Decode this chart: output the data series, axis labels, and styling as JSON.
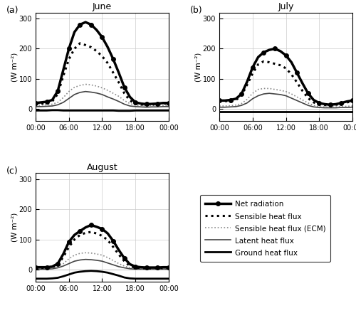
{
  "titles": [
    "June",
    "July",
    "August"
  ],
  "panel_labels": [
    "(a)",
    "(b)",
    "(c)"
  ],
  "time_labels": [
    "00:00",
    "06:00",
    "12:00",
    "18:00",
    "00:00"
  ],
  "time_ticks": [
    0,
    6,
    12,
    18,
    24
  ],
  "ylim": [
    -40,
    320
  ],
  "yticks": [
    0,
    100,
    200,
    300
  ],
  "ylabel": "(W m⁻²)",
  "june": {
    "net_radiation": [
      20,
      22,
      24,
      30,
      60,
      130,
      200,
      255,
      280,
      288,
      280,
      262,
      238,
      205,
      165,
      120,
      72,
      40,
      22,
      18,
      16,
      17,
      18,
      20,
      20
    ],
    "sensible_heat": [
      18,
      18,
      20,
      25,
      50,
      110,
      165,
      200,
      218,
      212,
      205,
      192,
      175,
      152,
      120,
      88,
      52,
      28,
      18,
      15,
      14,
      15,
      16,
      18,
      18
    ],
    "sensible_ecm": [
      12,
      13,
      14,
      16,
      22,
      38,
      58,
      72,
      78,
      82,
      80,
      76,
      70,
      62,
      52,
      42,
      28,
      18,
      13,
      11,
      10,
      11,
      11,
      12,
      12
    ],
    "latent_heat": [
      8,
      8,
      9,
      10,
      14,
      22,
      35,
      48,
      55,
      58,
      56,
      53,
      48,
      40,
      33,
      25,
      16,
      10,
      8,
      7,
      6,
      7,
      7,
      8,
      8
    ],
    "ground_heat": [
      -5,
      -5,
      -5,
      -4,
      -4,
      -5,
      -5,
      -5,
      -5,
      -5,
      -5,
      -5,
      -5,
      -5,
      -5,
      -6,
      -6,
      -6,
      -5,
      -5,
      -5,
      -5,
      -5,
      -5,
      -5
    ]
  },
  "july": {
    "net_radiation": [
      28,
      28,
      30,
      34,
      50,
      90,
      138,
      172,
      188,
      196,
      200,
      192,
      178,
      155,
      120,
      85,
      52,
      30,
      20,
      16,
      14,
      16,
      20,
      25,
      28
    ],
    "sensible_heat": [
      25,
      26,
      27,
      30,
      45,
      80,
      118,
      148,
      158,
      155,
      150,
      145,
      135,
      115,
      88,
      60,
      36,
      22,
      15,
      13,
      12,
      14,
      17,
      22,
      25
    ],
    "sensible_ecm": [
      10,
      10,
      11,
      13,
      18,
      32,
      52,
      65,
      68,
      68,
      65,
      62,
      58,
      50,
      40,
      30,
      20,
      12,
      8,
      7,
      6,
      7,
      8,
      9,
      10
    ],
    "latent_heat": [
      6,
      6,
      7,
      8,
      12,
      20,
      34,
      44,
      50,
      52,
      50,
      48,
      44,
      36,
      28,
      20,
      12,
      7,
      5,
      4,
      4,
      4,
      5,
      5,
      6
    ],
    "ground_heat": [
      -8,
      -8,
      -8,
      -8,
      -8,
      -8,
      -8,
      -8,
      -8,
      -8,
      -8,
      -8,
      -8,
      -8,
      -8,
      -8,
      -8,
      -8,
      -8,
      -8,
      -8,
      -8,
      -8,
      -8,
      -8
    ]
  },
  "august": {
    "net_radiation": [
      8,
      8,
      8,
      10,
      20,
      52,
      92,
      115,
      128,
      140,
      148,
      142,
      135,
      120,
      95,
      65,
      38,
      18,
      10,
      8,
      7,
      7,
      7,
      8,
      8
    ],
    "sensible_heat": [
      5,
      5,
      6,
      8,
      16,
      42,
      75,
      100,
      115,
      122,
      125,
      120,
      112,
      98,
      75,
      50,
      28,
      12,
      7,
      5,
      4,
      4,
      5,
      5,
      5
    ],
    "sensible_ecm": [
      3,
      3,
      4,
      5,
      9,
      20,
      36,
      48,
      54,
      56,
      55,
      52,
      48,
      40,
      30,
      20,
      12,
      6,
      4,
      3,
      3,
      3,
      3,
      3,
      3
    ],
    "latent_heat": [
      2,
      2,
      2,
      3,
      6,
      12,
      20,
      28,
      32,
      34,
      33,
      31,
      28,
      22,
      16,
      10,
      6,
      3,
      2,
      2,
      2,
      2,
      2,
      2,
      2
    ],
    "ground_heat": [
      -30,
      -30,
      -30,
      -29,
      -27,
      -22,
      -16,
      -10,
      -7,
      -5,
      -4,
      -5,
      -7,
      -10,
      -15,
      -20,
      -26,
      -29,
      -30,
      -30,
      -30,
      -30,
      -30,
      -30,
      -30
    ]
  },
  "legend_labels": [
    "Net radiation",
    "Sensible heat flux",
    "Sensible heat flux (ECM)",
    "Latent heat flux",
    "Ground heat flux"
  ]
}
